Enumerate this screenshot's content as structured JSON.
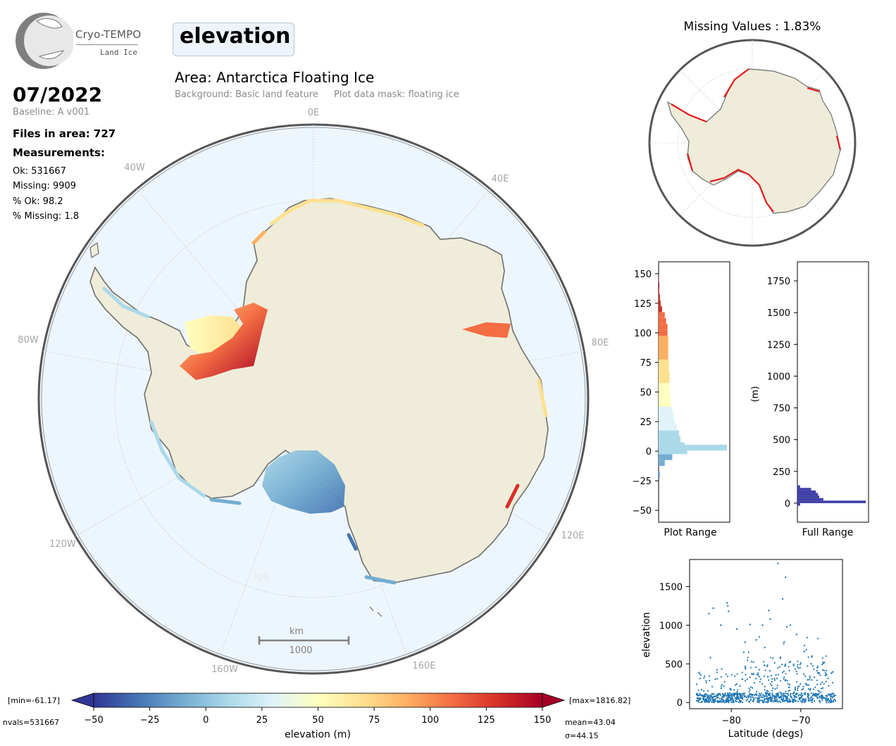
{
  "logo": {
    "name": "Cryo-TEMPO",
    "sub": "Land Ice"
  },
  "header": {
    "parameter": "elevation",
    "area_title": "Area: Antarctica Floating Ice",
    "background": "Background: Basic land feature",
    "mask": "Plot data mask: floating ice"
  },
  "info": {
    "date": "07/2022",
    "baseline": "Baseline: A v001",
    "files": "Files in area: 727",
    "measurements_label": "Measurements:",
    "ok": "Ok: 531667",
    "missing": "Missing: 9909",
    "pct_ok": "% Ok: 98.2",
    "pct_missing": "% Missing: 1.8"
  },
  "map": {
    "lon_labels": {
      "l0": "0E",
      "l40e": "40E",
      "l80e": "80E",
      "l120e": "120E",
      "l160e": "160E",
      "l160w": "160W",
      "l120w": "120W",
      "l80w": "80W",
      "l40w": "40W"
    },
    "lat_label": "70S",
    "scale_unit": "km",
    "scale_value": "1000",
    "colors": {
      "ocean": "#eef6fd",
      "land": "#efecda",
      "coast": "#6e6e6e"
    }
  },
  "colorbar": {
    "min_label": "[min=-61.17]",
    "max_label": "[max=1816.82]",
    "nvals": "nvals=531667",
    "mean": "mean=43.04",
    "sigma": "σ=44.15",
    "label": "elevation (m)",
    "ticks": [
      "−50",
      "−25",
      "0",
      "25",
      "50",
      "75",
      "100",
      "125",
      "150"
    ],
    "colors": [
      "#313695",
      "#4575b4",
      "#74add1",
      "#abd9e9",
      "#e0f3f8",
      "#ffffbf",
      "#fee090",
      "#fdae61",
      "#f46d43",
      "#d73027",
      "#a50026"
    ]
  },
  "missing_map": {
    "title": "Missing Values : 1.83%"
  },
  "histograms": {
    "plot_range_label": "Plot Range",
    "full_range_label": "Full Range",
    "full_ylabel": "(m)",
    "plot_ticks": [
      "150",
      "125",
      "100",
      "75",
      "50",
      "25",
      "0",
      "−25",
      "−50"
    ],
    "full_ticks": [
      "1750",
      "1500",
      "1250",
      "1000",
      "750",
      "500",
      "250",
      "0"
    ]
  },
  "chart_data": [
    {
      "type": "bar",
      "orientation": "horizontal",
      "xlabel": "Plot Range",
      "ylim": [
        -60,
        160
      ],
      "bin_centers": [
        -20,
        -10,
        -5,
        0,
        3,
        5,
        10,
        15,
        20,
        25,
        30,
        35,
        40,
        45,
        50,
        55,
        60,
        65,
        70,
        75,
        80,
        85,
        90,
        95,
        100,
        105,
        110,
        115,
        120,
        125,
        130,
        135,
        140,
        145
      ],
      "values": [
        2,
        9,
        20,
        42,
        100,
        38,
        32,
        30,
        27,
        24,
        22,
        20,
        18,
        17,
        16,
        16,
        16,
        16,
        15,
        15,
        14,
        14,
        14,
        14,
        13,
        13,
        11,
        9,
        5,
        3,
        2,
        1,
        1,
        0.5
      ]
    },
    {
      "type": "bar",
      "orientation": "horizontal",
      "xlabel": "Full Range",
      "ylabel": "(m)",
      "ylim": [
        -150,
        1900
      ],
      "bin_centers": [
        -10,
        10,
        30,
        50,
        70,
        90,
        110,
        130
      ],
      "values": [
        4,
        100,
        38,
        32,
        30,
        27,
        20,
        4
      ]
    },
    {
      "type": "scatter",
      "xlabel": "Latitude (degs)",
      "ylabel": "elevation",
      "xlim": [
        -86,
        -64
      ],
      "ylim": [
        -80,
        1850
      ],
      "xticks": [
        "−80",
        "−70"
      ],
      "yticks": [
        "0",
        "500",
        "1000",
        "1500"
      ],
      "points": [
        [
          -84.5,
          310
        ],
        [
          -83.2,
          1150
        ],
        [
          -82.6,
          1220
        ],
        [
          -81.5,
          1000
        ],
        [
          -80.6,
          1290
        ],
        [
          -80.5,
          1250
        ],
        [
          -80.4,
          1180
        ],
        [
          -79.2,
          950
        ],
        [
          -78.0,
          780
        ],
        [
          -77.3,
          1010
        ],
        [
          -76.4,
          810
        ],
        [
          -75.5,
          1000
        ],
        [
          -74.6,
          1190
        ],
        [
          -74.4,
          1080
        ],
        [
          -73.3,
          1800
        ],
        [
          -72.6,
          1340
        ],
        [
          -72.2,
          1620
        ],
        [
          -72.0,
          980
        ],
        [
          -71.5,
          1000
        ],
        [
          -70.6,
          880
        ],
        [
          -69.5,
          660
        ],
        [
          -68.4,
          600
        ],
        [
          -67.6,
          450
        ],
        [
          -66.8,
          420
        ],
        [
          -66.3,
          360
        ],
        [
          -65.6,
          380
        ],
        [
          -78.2,
          650
        ],
        [
          -83.0,
          580
        ]
      ]
    }
  ]
}
